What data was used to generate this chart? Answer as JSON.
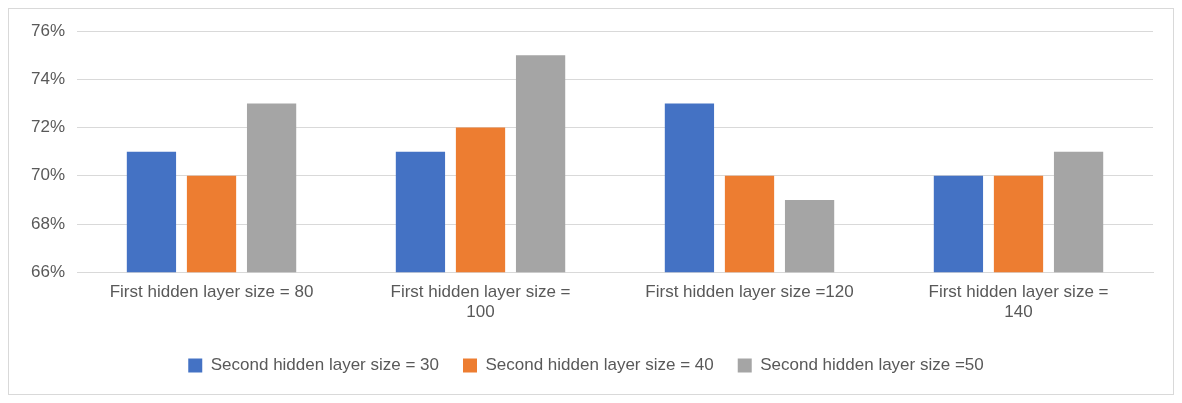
{
  "chart_data": {
    "type": "bar",
    "categories": [
      "First hidden layer size = 80",
      "First hidden layer size = 100",
      "First hidden layer size =120",
      "First hidden layer size = 140"
    ],
    "series": [
      {
        "name": "Second hidden layer size = 30",
        "color": "#4472c4",
        "values": [
          71,
          71,
          73,
          70
        ]
      },
      {
        "name": "Second hidden layer size = 40",
        "color": "#ed7d31",
        "values": [
          70,
          72,
          70,
          70
        ]
      },
      {
        "name": "Second hidden layer size =50",
        "color": "#a5a5a5",
        "values": [
          73,
          75,
          69,
          71
        ]
      }
    ],
    "ylim": [
      66,
      76
    ],
    "yticks": [
      {
        "value": 66,
        "label": "66%"
      },
      {
        "value": 68,
        "label": "68%"
      },
      {
        "value": 70,
        "label": "70%"
      },
      {
        "value": 72,
        "label": "72%"
      },
      {
        "value": 74,
        "label": "74%"
      },
      {
        "value": 76,
        "label": "76%"
      }
    ],
    "grid": "y",
    "legend": "bottom"
  }
}
